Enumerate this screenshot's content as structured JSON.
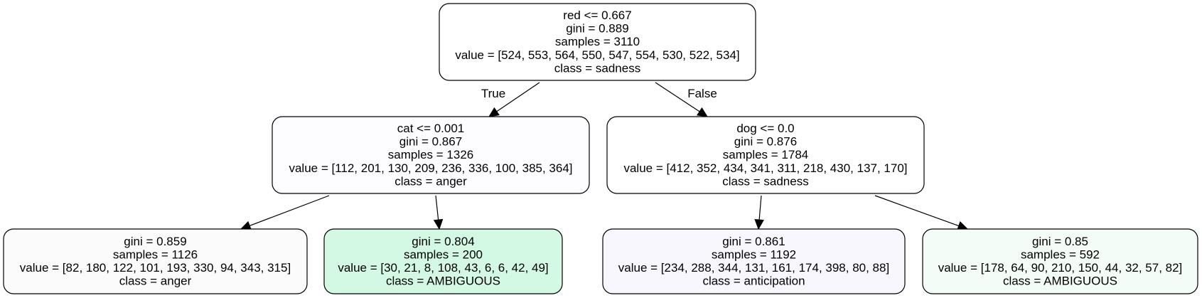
{
  "tree": {
    "nodes": [
      {
        "id": "root",
        "lines": [
          "red <= 0.667",
          "gini = 0.889",
          "samples = 3110",
          "value = [524, 553, 564, 550, 547, 554, 530, 522, 534]",
          "class = sadness"
        ],
        "fill": "#ffffff"
      },
      {
        "id": "left",
        "lines": [
          "cat <= 0.001",
          "gini = 0.867",
          "samples = 1326",
          "value = [112, 201, 130, 209, 236, 336, 100, 385, 364]",
          "class = anger"
        ],
        "fill": "#fdfcff"
      },
      {
        "id": "right",
        "lines": [
          "dog <= 0.0",
          "gini = 0.876",
          "samples = 1784",
          "value = [412, 352, 434, 341, 311, 218, 430, 137, 170]",
          "class = sadness"
        ],
        "fill": "#ffffff"
      },
      {
        "id": "left-left",
        "lines": [
          "gini = 0.859",
          "samples = 1126",
          "value = [82, 180, 122, 101, 193, 330, 94, 343, 315]",
          "class = anger"
        ],
        "fill": "#fbfbfb"
      },
      {
        "id": "left-right",
        "lines": [
          "gini = 0.804",
          "samples = 200",
          "value = [30, 21, 8, 108, 43, 6, 6, 42, 49]",
          "class = AMBIGUOUS"
        ],
        "fill": "#d3f8e4"
      },
      {
        "id": "right-left",
        "lines": [
          "gini = 0.861",
          "samples = 1192",
          "value = [234, 288, 344, 131, 161, 174, 398, 80, 88]",
          "class = anticipation"
        ],
        "fill": "#f9f7fe"
      },
      {
        "id": "right-right",
        "lines": [
          "gini = 0.85",
          "samples = 592",
          "value = [178, 64, 90, 210, 150, 44, 32, 57, 82]",
          "class = AMBIGUOUS"
        ],
        "fill": "#f4fcf7"
      }
    ],
    "edges": [
      {
        "from": "root",
        "to": "left",
        "label": "True"
      },
      {
        "from": "root",
        "to": "right",
        "label": "False"
      },
      {
        "from": "left",
        "to": "left-left",
        "label": ""
      },
      {
        "from": "left",
        "to": "left-right",
        "label": ""
      },
      {
        "from": "right",
        "to": "right-left",
        "label": ""
      },
      {
        "from": "right",
        "to": "right-right",
        "label": ""
      }
    ]
  }
}
